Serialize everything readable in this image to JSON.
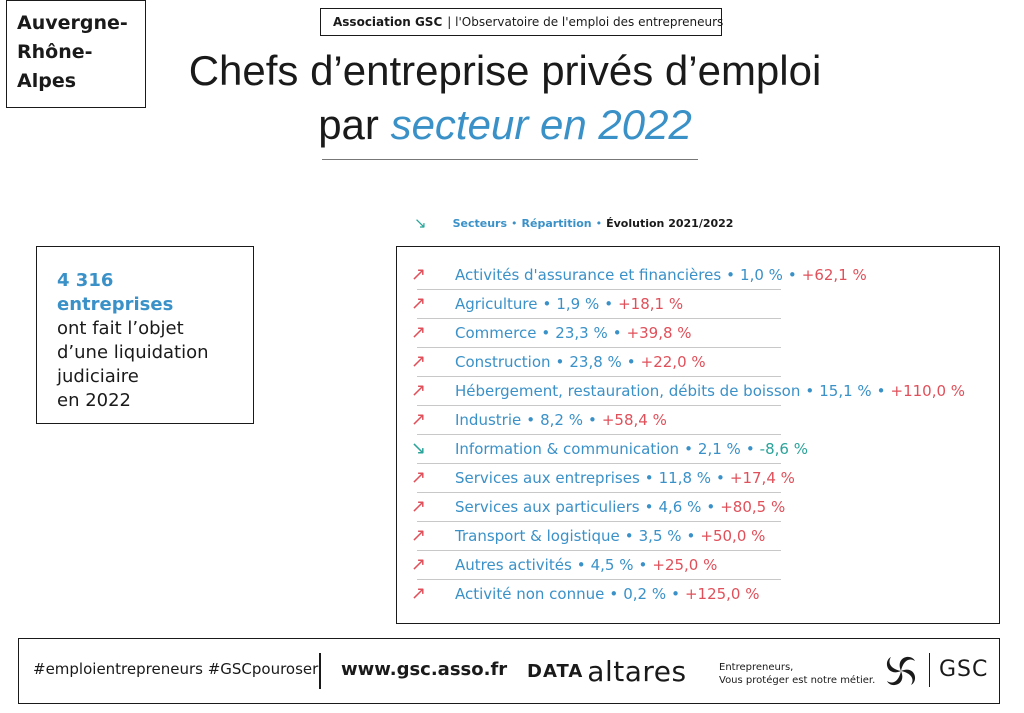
{
  "region": {
    "line1": "Auvergne-",
    "line2": "Rhône-",
    "line3": "Alpes"
  },
  "header": {
    "association": "Association GSC",
    "observatory": "| l'Observatoire de l'emploi des entrepreneurs",
    "title_line1": "Chefs d’entreprise privés d’emploi",
    "title_line2_prefix": "par ",
    "title_line2_accent": "secteur en 2022"
  },
  "legend": {
    "arrow": "↘",
    "item1": "Secteurs",
    "sep": "•",
    "item2": "Répartition",
    "item3": "Évolution 2021/2022"
  },
  "summary": {
    "strong": "4 316 entreprises",
    "line2": "ont fait l’objet",
    "line3": "d’une liquidation",
    "line4": "judiciaire",
    "line5": "en 2022"
  },
  "sectors": [
    {
      "arrow": "↗",
      "trend": "up",
      "name": "Activités d'assurance et financières",
      "share": "1,0 %",
      "evolution": "+62,1 %"
    },
    {
      "arrow": "↗",
      "trend": "up",
      "name": "Agriculture",
      "share": "1,9 %",
      "evolution": "+18,1 %"
    },
    {
      "arrow": "↗",
      "trend": "up",
      "name": "Commerce",
      "share": "23,3 %",
      "evolution": "+39,8 %"
    },
    {
      "arrow": "↗",
      "trend": "up",
      "name": "Construction",
      "share": "23,8 %",
      "evolution": "+22,0 %"
    },
    {
      "arrow": "↗",
      "trend": "up",
      "name": "Hébergement, restauration, débits de boisson",
      "share": "15,1 %",
      "evolution": "+110,0 %"
    },
    {
      "arrow": "↗",
      "trend": "up",
      "name": "Industrie",
      "share": "8,2 %",
      "evolution": "+58,4 %"
    },
    {
      "arrow": "↘",
      "trend": "down",
      "name": "Information & communication",
      "share": "2,1 %",
      "evolution": "-8,6 %"
    },
    {
      "arrow": "↗",
      "trend": "up",
      "name": "Services aux entreprises",
      "share": "11,8 %",
      "evolution": "+17,4 %"
    },
    {
      "arrow": "↗",
      "trend": "up",
      "name": "Services aux particuliers",
      "share": "4,6 %",
      "evolution": "+80,5 %"
    },
    {
      "arrow": "↗",
      "trend": "up",
      "name": "Transport & logistique",
      "share": "3,5 %",
      "evolution": "+50,0 %"
    },
    {
      "arrow": "↗",
      "trend": "up",
      "name": "Autres activités",
      "share": "4,5 %",
      "evolution": "+25,0 %"
    },
    {
      "arrow": "↗",
      "trend": "up",
      "name": "Activité non connue",
      "share": "0,2 %",
      "evolution": "+125,0 %"
    }
  ],
  "separator": "•",
  "footer": {
    "hashtags": "#emploientrepreneurs #GSCpouroser",
    "website": "www.gsc.asso.fr",
    "partner_mark": "DATA",
    "partner_name": "altares",
    "tagline_line1": "Entrepreneurs,",
    "tagline_line2": "Vous protéger est notre métier.",
    "logo_text": "GSC"
  },
  "colors": {
    "accent_blue": "#3a91c8",
    "increase_red": "#e0505a",
    "decrease_teal": "#2aa39a"
  },
  "icons": {
    "trend_up": "arrow-up-right-icon",
    "trend_down": "arrow-down-right-icon",
    "logo": "gsc-swirl-logo"
  }
}
